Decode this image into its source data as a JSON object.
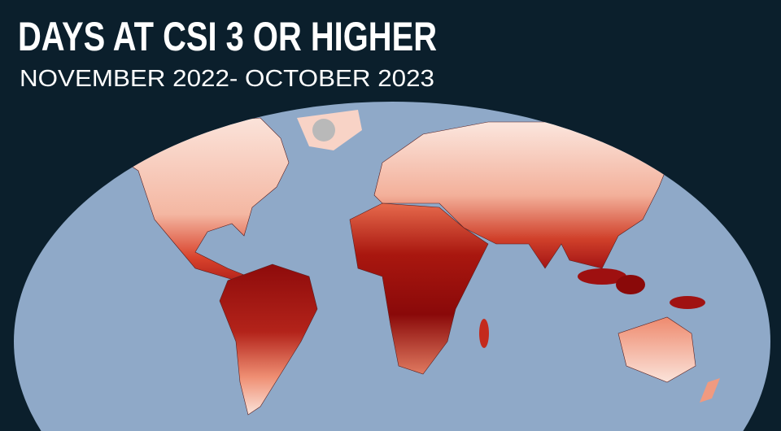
{
  "title": "DAYS AT CSI 3 OR HIGHER",
  "subtitle": "NOVEMBER 2022- OCTOBER 2023"
}
